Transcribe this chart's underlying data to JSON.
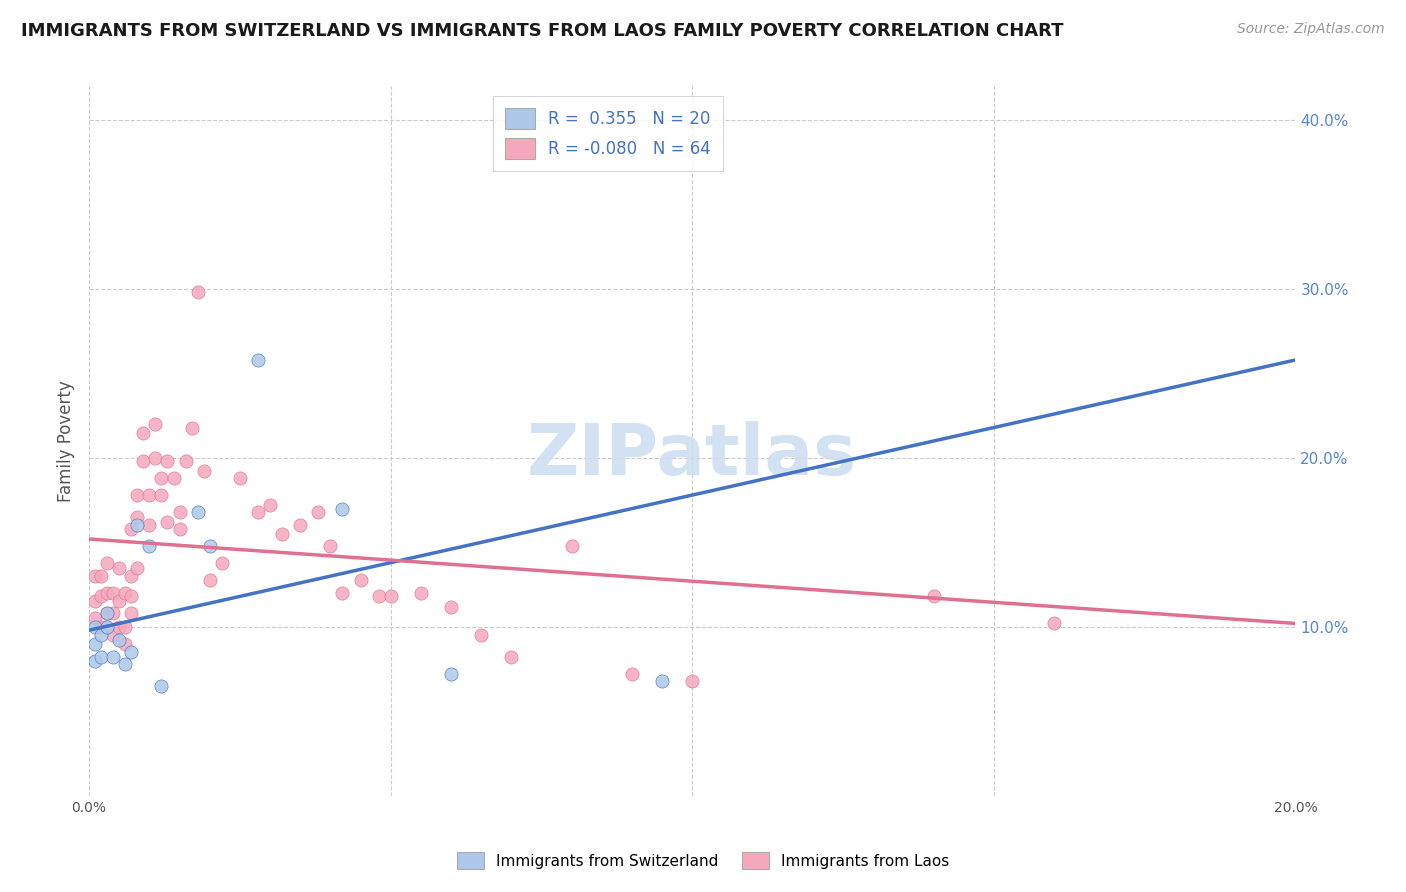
{
  "title": "IMMIGRANTS FROM SWITZERLAND VS IMMIGRANTS FROM LAOS FAMILY POVERTY CORRELATION CHART",
  "source": "Source: ZipAtlas.com",
  "xlabel": "",
  "ylabel": "Family Poverty",
  "watermark": "ZIPatlas",
  "xlim": [
    0.0,
    0.2
  ],
  "ylim": [
    0.0,
    0.42
  ],
  "yticks_right": [
    0.1,
    0.2,
    0.3,
    0.4
  ],
  "legend_r1": "R =  0.355   N = 20",
  "legend_r2": "R = -0.080   N = 64",
  "series1_color": "#adc8e8",
  "series2_color": "#f5a8bc",
  "line1_color": "#4472c4",
  "line2_color": "#e07090",
  "title_color": "#1a1a1a",
  "title_fontsize": 13,
  "source_fontsize": 10,
  "background_color": "#ffffff",
  "grid_color": "#cccccc",
  "right_label_color": "#5588cc",
  "watermark_color": "#ccddf0",
  "legend_text_color": "#333333",
  "legend_value_color": "#4472c4",
  "switzerland_x": [
    0.001,
    0.001,
    0.001,
    0.002,
    0.002,
    0.003,
    0.003,
    0.004,
    0.005,
    0.006,
    0.007,
    0.008,
    0.01,
    0.012,
    0.018,
    0.02,
    0.028,
    0.042,
    0.06,
    0.095
  ],
  "switzerland_y": [
    0.1,
    0.09,
    0.08,
    0.095,
    0.082,
    0.1,
    0.108,
    0.082,
    0.092,
    0.078,
    0.085,
    0.16,
    0.148,
    0.065,
    0.168,
    0.148,
    0.258,
    0.17,
    0.072,
    0.068
  ],
  "laos_x": [
    0.001,
    0.001,
    0.001,
    0.002,
    0.002,
    0.002,
    0.003,
    0.003,
    0.003,
    0.004,
    0.004,
    0.004,
    0.005,
    0.005,
    0.005,
    0.006,
    0.006,
    0.006,
    0.007,
    0.007,
    0.007,
    0.007,
    0.008,
    0.008,
    0.008,
    0.009,
    0.009,
    0.01,
    0.01,
    0.011,
    0.011,
    0.012,
    0.012,
    0.013,
    0.013,
    0.014,
    0.015,
    0.015,
    0.016,
    0.017,
    0.018,
    0.019,
    0.02,
    0.022,
    0.025,
    0.028,
    0.03,
    0.032,
    0.035,
    0.038,
    0.04,
    0.042,
    0.045,
    0.048,
    0.05,
    0.055,
    0.06,
    0.065,
    0.07,
    0.08,
    0.09,
    0.1,
    0.14,
    0.16
  ],
  "laos_y": [
    0.115,
    0.13,
    0.105,
    0.1,
    0.118,
    0.13,
    0.108,
    0.12,
    0.138,
    0.095,
    0.108,
    0.12,
    0.1,
    0.115,
    0.135,
    0.09,
    0.1,
    0.12,
    0.108,
    0.118,
    0.13,
    0.158,
    0.135,
    0.165,
    0.178,
    0.198,
    0.215,
    0.178,
    0.16,
    0.2,
    0.22,
    0.178,
    0.188,
    0.162,
    0.198,
    0.188,
    0.158,
    0.168,
    0.198,
    0.218,
    0.298,
    0.192,
    0.128,
    0.138,
    0.188,
    0.168,
    0.172,
    0.155,
    0.16,
    0.168,
    0.148,
    0.12,
    0.128,
    0.118,
    0.118,
    0.12,
    0.112,
    0.095,
    0.082,
    0.148,
    0.072,
    0.068,
    0.118,
    0.102
  ],
  "blue_line_x0": 0.0,
  "blue_line_y0": 0.098,
  "blue_line_x1": 0.2,
  "blue_line_y1": 0.258,
  "pink_line_x0": 0.0,
  "pink_line_y0": 0.152,
  "pink_line_x1": 0.2,
  "pink_line_y1": 0.102
}
